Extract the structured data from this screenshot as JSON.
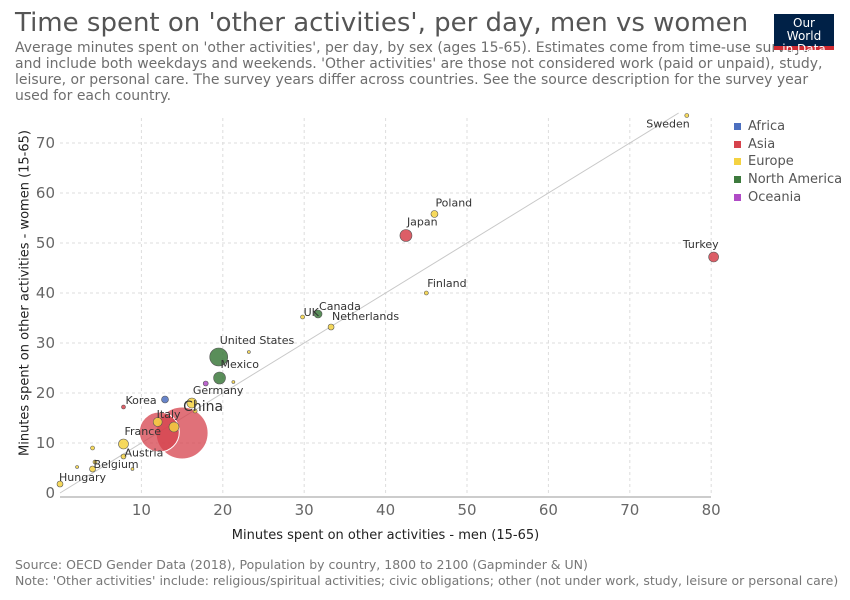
{
  "header": {
    "title": "Time spent on 'other activities', per day, men vs women",
    "subtitle": "Average minutes spent on 'other activities', per day, by sex (ages 15-65). Estimates come from time-use surveys and include both weekdays and weekends. 'Other activities' are those not considered work (paid or unpaid), study, leisure, or personal care. The survey years differ across countries. See the source description for the survey year used for each country.",
    "logo_line1": "Our World",
    "logo_line2": "in Data"
  },
  "footer": {
    "source": "Source: OECD Gender Data (2018), Population by country, 1800 to 2100 (Gapminder & UN)",
    "note": "Note: 'Other activities' include: religious/spiritual activities; civic obligations; other (not under work, study, leisure or personal care)"
  },
  "colors": {
    "Africa": "#4c6fbf",
    "Asia": "#d6424c",
    "Europe": "#f4d241",
    "North America": "#3d7a3d",
    "Oceania": "#b04bc6"
  },
  "chart_data": {
    "type": "scatter",
    "title": "Time spent on 'other activities', per day, men vs women",
    "xlabel": "Minutes spent on other activities - men (15-65)",
    "ylabel": "Minutes spent on other activities - women (15-65)",
    "xlim": [
      0,
      80
    ],
    "ylim": [
      0,
      75
    ],
    "xticks": [
      10,
      20,
      30,
      40,
      50,
      60,
      70,
      80
    ],
    "yticks": [
      0,
      10,
      20,
      30,
      40,
      50,
      60,
      70
    ],
    "grid": true,
    "legend": {
      "placement": "right",
      "entries": [
        "Africa",
        "Asia",
        "Europe",
        "North America",
        "Oceania"
      ]
    },
    "reference_line": "y = x",
    "points": [
      {
        "label": "Sweden",
        "region": "Europe",
        "x": 77.0,
        "y": 75.5,
        "size": 2
      },
      {
        "label": "Poland",
        "region": "Europe",
        "x": 46.0,
        "y": 55.8,
        "size": 3.5
      },
      {
        "label": "Japan",
        "region": "Asia",
        "x": 42.5,
        "y": 51.5,
        "size": 6
      },
      {
        "label": "Turkey",
        "region": "Asia",
        "x": 80.3,
        "y": 47.2,
        "size": 5
      },
      {
        "label": "Finland",
        "region": "Europe",
        "x": 45.0,
        "y": 40.0,
        "size": 2
      },
      {
        "label": "Canada",
        "region": "North America",
        "x": 31.7,
        "y": 35.8,
        "size": 4
      },
      {
        "label": "UK",
        "region": "Europe",
        "x": 29.8,
        "y": 35.2,
        "size": 2
      },
      {
        "label": "Netherlands",
        "region": "Europe",
        "x": 33.3,
        "y": 33.2,
        "size": 3
      },
      {
        "label": "United States",
        "region": "North America",
        "x": 19.5,
        "y": 27.2,
        "size": 9
      },
      {
        "label": "Mexico",
        "region": "North America",
        "x": 19.6,
        "y": 23.0,
        "size": 6
      },
      {
        "label": "Germany",
        "region": "Europe",
        "x": 16.2,
        "y": 18.0,
        "size": 5
      },
      {
        "label": "Korea",
        "region": "Asia",
        "x": 7.8,
        "y": 17.2,
        "size": 2
      },
      {
        "label": "Italy",
        "region": "Europe",
        "x": 12.0,
        "y": 14.2,
        "size": 4.5
      },
      {
        "label": "China",
        "region": "Asia",
        "x": 15.0,
        "y": 12.0,
        "size": 26
      },
      {
        "label": "France",
        "region": "Europe",
        "x": 7.8,
        "y": 9.8,
        "size": 5
      },
      {
        "label": "Austria",
        "region": "Europe",
        "x": 7.8,
        "y": 7.3,
        "size": 2.5
      },
      {
        "label": "Belgium",
        "region": "Europe",
        "x": 4.0,
        "y": 4.8,
        "size": 3
      },
      {
        "label": "Hungary",
        "region": "Europe",
        "x": 0.0,
        "y": 1.8,
        "size": 3
      },
      {
        "label": "",
        "region": "Asia",
        "x": 12.2,
        "y": 12.2,
        "size": 20
      },
      {
        "label": "",
        "region": "Europe",
        "x": 14.0,
        "y": 13.2,
        "size": 5
      },
      {
        "label": "",
        "region": "Africa",
        "x": 12.9,
        "y": 18.7,
        "size": 3.5
      },
      {
        "label": "",
        "region": "Oceania",
        "x": 17.9,
        "y": 21.9,
        "size": 2.5
      },
      {
        "label": "",
        "region": "Europe",
        "x": 23.2,
        "y": 28.2,
        "size": 1.5
      },
      {
        "label": "",
        "region": "Europe",
        "x": 21.3,
        "y": 22.2,
        "size": 1.5
      },
      {
        "label": "",
        "region": "Europe",
        "x": 16.6,
        "y": 16.4,
        "size": 2
      },
      {
        "label": "",
        "region": "Europe",
        "x": 4.0,
        "y": 9.0,
        "size": 2
      },
      {
        "label": "",
        "region": "Europe",
        "x": 4.3,
        "y": 6.2,
        "size": 2
      },
      {
        "label": "",
        "region": "Europe",
        "x": 2.1,
        "y": 5.2,
        "size": 1.5
      },
      {
        "label": "",
        "region": "Europe",
        "x": 8.9,
        "y": 4.8,
        "size": 1.5
      }
    ]
  }
}
